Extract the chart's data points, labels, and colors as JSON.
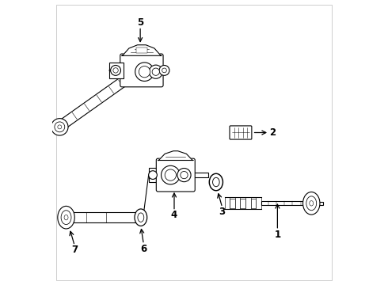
{
  "bg_color": "#ffffff",
  "line_color": "#000000",
  "line_width": 0.8,
  "fig_width": 4.9,
  "fig_height": 3.6,
  "dpi": 100
}
